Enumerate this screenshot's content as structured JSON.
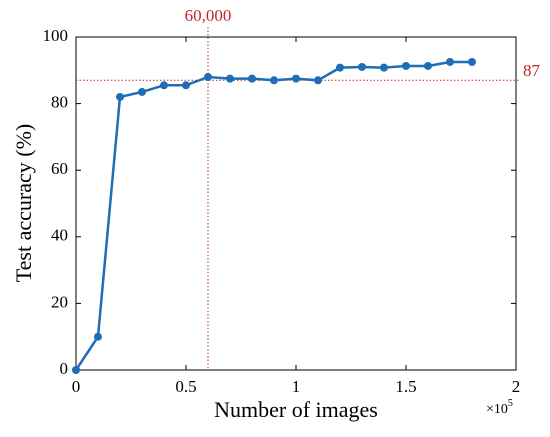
{
  "chart_data": {
    "type": "line",
    "x_label": "Number of images",
    "y_label": "Test accuracy (%)",
    "x_multiplier": {
      "base": "×10",
      "exponent": "5"
    },
    "x": [
      0,
      0.1,
      0.2,
      0.3,
      0.4,
      0.5,
      0.6,
      0.7,
      0.8,
      0.9,
      1.0,
      1.1,
      1.2,
      1.3,
      1.4,
      1.5,
      1.6,
      1.7,
      1.8
    ],
    "series": [
      {
        "color": "#1f6db5",
        "values": [
          0,
          10,
          82,
          83.5,
          85.5,
          85.5,
          88,
          87.5,
          87.5,
          87,
          87.5,
          87,
          90.8,
          91,
          90.8,
          91.3,
          91.3,
          92.5,
          92.5
        ]
      }
    ],
    "xlim": [
      0,
      2
    ],
    "xticks": [
      0,
      0.5,
      1,
      1.5,
      2
    ],
    "ylim": [
      0,
      100
    ],
    "yticks": [
      0,
      20,
      40,
      60,
      80,
      100
    ],
    "annotations": [
      {
        "label": "60,000",
        "x": 0.6,
        "color": "#c0282d"
      },
      {
        "label": "87",
        "y": 87,
        "color": "#c0282d"
      }
    ]
  }
}
